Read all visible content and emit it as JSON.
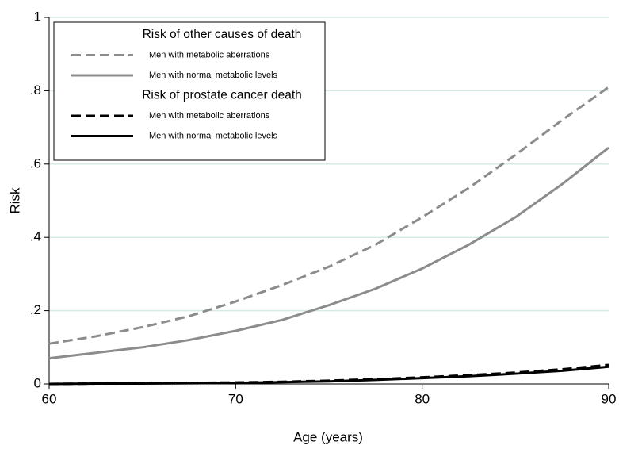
{
  "chart_data": {
    "type": "line",
    "x_label": "Age (years)",
    "y_label": "Risk",
    "x": [
      60,
      62.5,
      65,
      67.5,
      70,
      72.5,
      75,
      77.5,
      80,
      82.5,
      85,
      87.5,
      90
    ],
    "legend_groups": [
      "Risk of other causes of death",
      "Risk of prostate cancer death"
    ],
    "series": [
      {
        "name": "Men with metabolic aberrations",
        "color": "#8c8c8c",
        "dash": true,
        "values": [
          0.11,
          0.13,
          0.155,
          0.185,
          0.225,
          0.27,
          0.32,
          0.38,
          0.455,
          0.535,
          0.625,
          0.72,
          0.81
        ]
      },
      {
        "name": "Men with normal metabolic levels",
        "color": "#8c8c8c",
        "dash": false,
        "values": [
          0.07,
          0.085,
          0.1,
          0.12,
          0.145,
          0.175,
          0.215,
          0.26,
          0.315,
          0.38,
          0.455,
          0.545,
          0.645
        ]
      },
      {
        "name": "Men with metabolic aberrations",
        "color": "#000000",
        "dash": true,
        "values": [
          0,
          0.001,
          0.002,
          0.003,
          0.004,
          0.006,
          0.009,
          0.013,
          0.018,
          0.024,
          0.031,
          0.04,
          0.052
        ]
      },
      {
        "name": "Men with normal metabolic levels",
        "color": "#000000",
        "dash": false,
        "values": [
          0,
          0.001,
          0.001,
          0.002,
          0.003,
          0.005,
          0.007,
          0.011,
          0.016,
          0.021,
          0.028,
          0.036,
          0.047
        ]
      }
    ],
    "xlim": [
      60,
      90
    ],
    "ylim": [
      0,
      1
    ],
    "xticks": [
      60,
      70,
      80,
      90
    ],
    "yticks": [
      0,
      {
        "value": 0.2,
        "label": ".2"
      },
      {
        "value": 0.4,
        "label": ".4"
      },
      {
        "value": 0.6,
        "label": ".6"
      },
      {
        "value": 0.8,
        "label": ".8"
      },
      1
    ],
    "grid": true,
    "grid_color": "#d6ebe7",
    "legend_position": "upper-left"
  }
}
